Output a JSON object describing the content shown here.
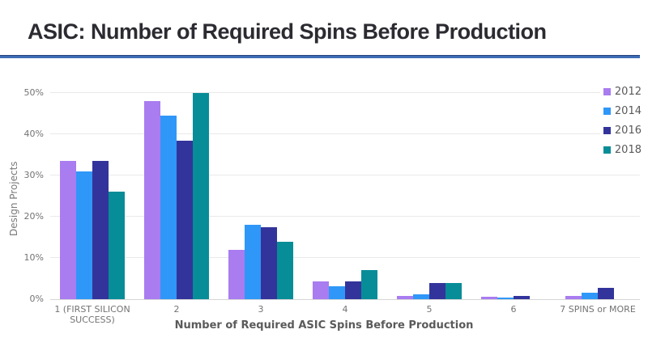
{
  "header": {
    "title": "ASIC: Number of Required Spins Before Production",
    "divider_color": "#3e6cb5"
  },
  "chart_data": {
    "type": "bar",
    "title": "ASIC: Number of Required Spins Before Production",
    "xlabel": "Number of Required ASIC Spins Before Production",
    "ylabel": "Design Projects",
    "ylim": [
      0,
      50
    ],
    "yticks": [
      "0%",
      "10%",
      "20%",
      "30%",
      "40%",
      "50%"
    ],
    "grid": true,
    "legend_position": "right",
    "categories": [
      "1 (FIRST SILICON SUCCESS)",
      "2",
      "3",
      "4",
      "5",
      "6",
      "7 SPINS or MORE"
    ],
    "series": [
      {
        "name": "2012",
        "color": "#a97cf0",
        "values": [
          33.5,
          48,
          12,
          4.3,
          0.8,
          0.6,
          0.7
        ]
      },
      {
        "name": "2014",
        "color": "#2f97f8",
        "values": [
          31,
          44.5,
          18,
          3.2,
          1.2,
          0.4,
          1.5
        ]
      },
      {
        "name": "2016",
        "color": "#33349b",
        "values": [
          33.5,
          38.5,
          17.5,
          4.4,
          4,
          0.7,
          2.7
        ]
      },
      {
        "name": "2018",
        "color": "#078d98",
        "values": [
          26,
          50,
          14,
          7,
          4,
          0,
          0
        ]
      }
    ]
  }
}
